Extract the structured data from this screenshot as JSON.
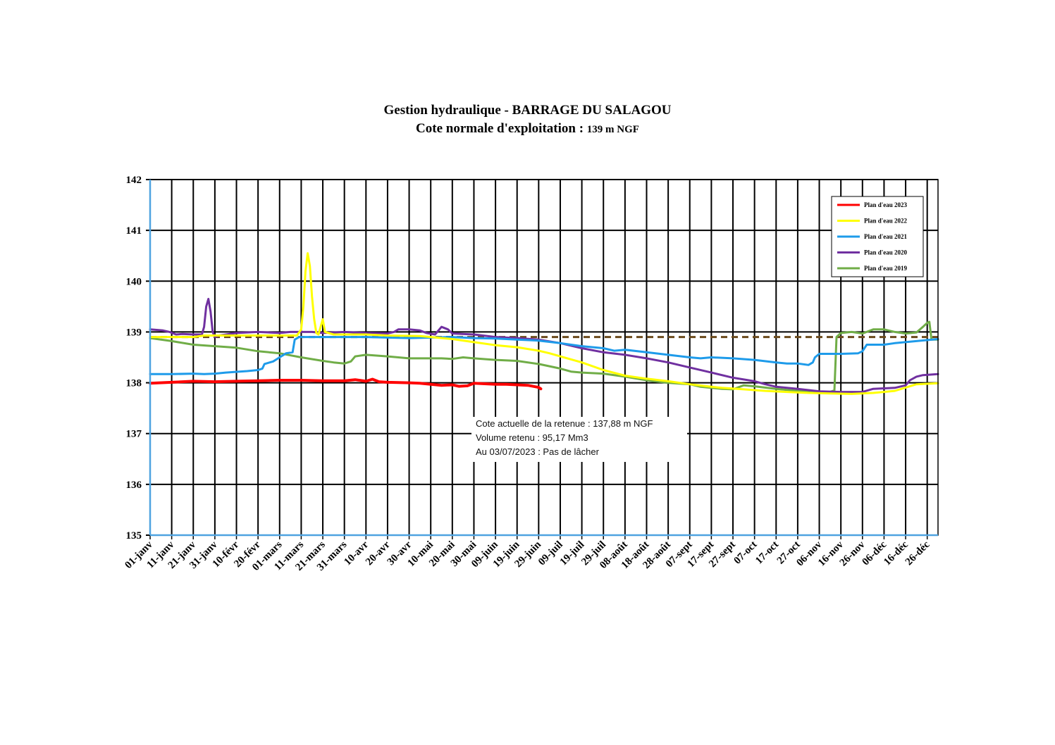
{
  "chart_data": {
    "type": "line",
    "title": "Gestion hydraulique - BARRAGE DU SALAGOU",
    "subtitle_main": "Cote normale d'exploitation : ",
    "subtitle_value": "139 m NGF",
    "ylim": [
      135,
      142
    ],
    "y_ticks": [
      135,
      136,
      137,
      138,
      139,
      140,
      141,
      142
    ],
    "xlim": [
      0,
      365
    ],
    "x_tick_labels": [
      "01-janv",
      "11-janv",
      "21-janv",
      "31-janv",
      "10-févr",
      "20-févr",
      "01-mars",
      "11-mars",
      "21-mars",
      "31-mars",
      "10-avr",
      "20-avr",
      "30-avr",
      "10-mai",
      "20-mai",
      "30-mai",
      "09-juin",
      "19-juin",
      "29-juin",
      "09-juil",
      "19-juil",
      "29-juil",
      "08-août",
      "18-août",
      "28-août",
      "07-sept",
      "17-sept",
      "27-sept",
      "07-oct",
      "17-oct",
      "27-oct",
      "06-nov",
      "16-nov",
      "26-nov",
      "06-déc",
      "16-déc",
      "26-déc"
    ],
    "grid": true,
    "legend_position": "top-right",
    "reference_line": {
      "y": 138.9,
      "color": "#6b4a1c",
      "style": "dashed"
    },
    "series": [
      {
        "name": "Plan d'eau 2023",
        "color": "#ff0000",
        "width": 4,
        "points": [
          [
            0,
            137.99
          ],
          [
            10,
            138.01
          ],
          [
            20,
            138.03
          ],
          [
            30,
            138.02
          ],
          [
            40,
            138.03
          ],
          [
            50,
            138.04
          ],
          [
            60,
            138.05
          ],
          [
            70,
            138.05
          ],
          [
            80,
            138.04
          ],
          [
            90,
            138.04
          ],
          [
            95,
            138.06
          ],
          [
            100,
            138.03
          ],
          [
            103,
            138.07
          ],
          [
            106,
            138.02
          ],
          [
            110,
            138.01
          ],
          [
            120,
            138.0
          ],
          [
            125,
            137.99
          ],
          [
            130,
            137.97
          ],
          [
            135,
            137.95
          ],
          [
            140,
            137.96
          ],
          [
            143,
            137.93
          ],
          [
            147,
            137.94
          ],
          [
            150,
            137.99
          ],
          [
            155,
            137.98
          ],
          [
            160,
            137.97
          ],
          [
            165,
            137.97
          ],
          [
            170,
            137.96
          ],
          [
            175,
            137.95
          ],
          [
            180,
            137.91
          ],
          [
            181,
            137.88
          ]
        ]
      },
      {
        "name": "Plan d'eau 2022",
        "color": "#ffff00",
        "width": 3,
        "points": [
          [
            0,
            138.9
          ],
          [
            10,
            138.9
          ],
          [
            20,
            138.9
          ],
          [
            25,
            138.93
          ],
          [
            30,
            138.93
          ],
          [
            40,
            138.93
          ],
          [
            50,
            138.93
          ],
          [
            60,
            138.93
          ],
          [
            68,
            138.93
          ],
          [
            70,
            139.05
          ],
          [
            71,
            139.5
          ],
          [
            72,
            140.2
          ],
          [
            73,
            140.55
          ],
          [
            74,
            140.3
          ],
          [
            75,
            139.7
          ],
          [
            76,
            139.25
          ],
          [
            77,
            138.98
          ],
          [
            78,
            138.95
          ],
          [
            80,
            139.25
          ],
          [
            81,
            139.0
          ],
          [
            85,
            138.95
          ],
          [
            100,
            138.95
          ],
          [
            110,
            138.93
          ],
          [
            125,
            138.92
          ],
          [
            130,
            138.9
          ],
          [
            140,
            138.86
          ],
          [
            150,
            138.8
          ],
          [
            160,
            138.74
          ],
          [
            170,
            138.7
          ],
          [
            180,
            138.63
          ],
          [
            185,
            138.58
          ],
          [
            190,
            138.52
          ],
          [
            200,
            138.4
          ],
          [
            210,
            138.25
          ],
          [
            220,
            138.14
          ],
          [
            230,
            138.08
          ],
          [
            240,
            138.03
          ],
          [
            250,
            137.97
          ],
          [
            260,
            137.92
          ],
          [
            265,
            137.9
          ],
          [
            275,
            137.87
          ],
          [
            285,
            137.84
          ],
          [
            295,
            137.82
          ],
          [
            305,
            137.8
          ],
          [
            315,
            137.79
          ],
          [
            325,
            137.78
          ],
          [
            335,
            137.8
          ],
          [
            345,
            137.84
          ],
          [
            355,
            137.97
          ],
          [
            365,
            137.99
          ]
        ]
      },
      {
        "name": "Plan d'eau 2021",
        "color": "#1e9bea",
        "width": 3,
        "points": [
          [
            0,
            138.17
          ],
          [
            10,
            138.17
          ],
          [
            20,
            138.18
          ],
          [
            25,
            138.17
          ],
          [
            30,
            138.18
          ],
          [
            35,
            138.2
          ],
          [
            45,
            138.23
          ],
          [
            50,
            138.25
          ],
          [
            52,
            138.28
          ],
          [
            53,
            138.37
          ],
          [
            57,
            138.42
          ],
          [
            60,
            138.5
          ],
          [
            63,
            138.58
          ],
          [
            66,
            138.6
          ],
          [
            67,
            138.85
          ],
          [
            69,
            138.9
          ],
          [
            80,
            138.9
          ],
          [
            100,
            138.9
          ],
          [
            120,
            138.88
          ],
          [
            130,
            138.89
          ],
          [
            140,
            138.9
          ],
          [
            150,
            138.88
          ],
          [
            160,
            138.87
          ],
          [
            170,
            138.85
          ],
          [
            180,
            138.83
          ],
          [
            190,
            138.78
          ],
          [
            200,
            138.72
          ],
          [
            210,
            138.68
          ],
          [
            215,
            138.63
          ],
          [
            220,
            138.65
          ],
          [
            230,
            138.6
          ],
          [
            240,
            138.55
          ],
          [
            250,
            138.5
          ],
          [
            255,
            138.48
          ],
          [
            260,
            138.5
          ],
          [
            270,
            138.48
          ],
          [
            280,
            138.45
          ],
          [
            290,
            138.4
          ],
          [
            295,
            138.38
          ],
          [
            300,
            138.38
          ],
          [
            305,
            138.35
          ],
          [
            307,
            138.4
          ],
          [
            308,
            138.5
          ],
          [
            310,
            138.57
          ],
          [
            320,
            138.57
          ],
          [
            328,
            138.58
          ],
          [
            330,
            138.62
          ],
          [
            332,
            138.75
          ],
          [
            340,
            138.75
          ],
          [
            345,
            138.78
          ],
          [
            355,
            138.82
          ],
          [
            365,
            138.86
          ]
        ]
      },
      {
        "name": "Plan d'eau 2020",
        "color": "#7030a0",
        "width": 3,
        "points": [
          [
            0,
            139.05
          ],
          [
            6,
            139.03
          ],
          [
            9,
            139.0
          ],
          [
            12,
            138.95
          ],
          [
            15,
            138.96
          ],
          [
            20,
            138.95
          ],
          [
            24,
            138.95
          ],
          [
            25,
            139.1
          ],
          [
            26,
            139.5
          ],
          [
            27,
            139.65
          ],
          [
            28,
            139.4
          ],
          [
            29,
            139.0
          ],
          [
            30,
            138.9
          ],
          [
            32,
            138.93
          ],
          [
            40,
            138.98
          ],
          [
            50,
            139.0
          ],
          [
            60,
            138.98
          ],
          [
            65,
            139.0
          ],
          [
            75,
            139.0
          ],
          [
            80,
            138.98
          ],
          [
            90,
            139.0
          ],
          [
            100,
            138.98
          ],
          [
            110,
            138.97
          ],
          [
            113,
            139.0
          ],
          [
            115,
            139.05
          ],
          [
            120,
            139.05
          ],
          [
            125,
            139.03
          ],
          [
            128,
            138.98
          ],
          [
            132,
            138.95
          ],
          [
            135,
            139.1
          ],
          [
            138,
            139.05
          ],
          [
            140,
            138.97
          ],
          [
            150,
            138.95
          ],
          [
            160,
            138.9
          ],
          [
            170,
            138.88
          ],
          [
            180,
            138.85
          ],
          [
            190,
            138.78
          ],
          [
            200,
            138.68
          ],
          [
            210,
            138.6
          ],
          [
            220,
            138.55
          ],
          [
            230,
            138.48
          ],
          [
            240,
            138.4
          ],
          [
            250,
            138.3
          ],
          [
            260,
            138.2
          ],
          [
            270,
            138.1
          ],
          [
            280,
            138.03
          ],
          [
            285,
            137.97
          ],
          [
            290,
            137.92
          ],
          [
            300,
            137.88
          ],
          [
            310,
            137.83
          ],
          [
            320,
            137.82
          ],
          [
            330,
            137.82
          ],
          [
            335,
            137.88
          ],
          [
            345,
            137.9
          ],
          [
            350,
            137.95
          ],
          [
            352,
            138.05
          ],
          [
            355,
            138.12
          ],
          [
            358,
            138.15
          ],
          [
            365,
            138.17
          ]
        ]
      },
      {
        "name": "Plan d'eau 2019",
        "color": "#70ad47",
        "width": 3,
        "points": [
          [
            0,
            138.88
          ],
          [
            10,
            138.82
          ],
          [
            20,
            138.75
          ],
          [
            30,
            138.72
          ],
          [
            40,
            138.69
          ],
          [
            50,
            138.62
          ],
          [
            60,
            138.58
          ],
          [
            70,
            138.5
          ],
          [
            80,
            138.43
          ],
          [
            85,
            138.4
          ],
          [
            90,
            138.38
          ],
          [
            93,
            138.42
          ],
          [
            95,
            138.52
          ],
          [
            100,
            138.55
          ],
          [
            110,
            138.52
          ],
          [
            120,
            138.48
          ],
          [
            130,
            138.48
          ],
          [
            135,
            138.48
          ],
          [
            140,
            138.47
          ],
          [
            145,
            138.5
          ],
          [
            150,
            138.48
          ],
          [
            160,
            138.45
          ],
          [
            170,
            138.43
          ],
          [
            180,
            138.37
          ],
          [
            190,
            138.28
          ],
          [
            195,
            138.22
          ],
          [
            200,
            138.2
          ],
          [
            210,
            138.18
          ],
          [
            220,
            138.12
          ],
          [
            230,
            138.05
          ],
          [
            240,
            138.0
          ],
          [
            250,
            137.97
          ],
          [
            255,
            137.92
          ],
          [
            265,
            137.88
          ],
          [
            270,
            137.87
          ],
          [
            275,
            137.95
          ],
          [
            280,
            137.93
          ],
          [
            290,
            137.88
          ],
          [
            300,
            137.84
          ],
          [
            305,
            137.82
          ],
          [
            310,
            137.81
          ],
          [
            315,
            137.82
          ],
          [
            317,
            137.85
          ],
          [
            318,
            138.9
          ],
          [
            320,
            138.98
          ],
          [
            325,
            139.0
          ],
          [
            330,
            138.97
          ],
          [
            335,
            139.05
          ],
          [
            340,
            139.05
          ],
          [
            345,
            139.0
          ],
          [
            350,
            138.97
          ],
          [
            355,
            138.99
          ],
          [
            358,
            139.1
          ],
          [
            360,
            139.18
          ],
          [
            361,
            139.2
          ],
          [
            362,
            138.85
          ],
          [
            365,
            138.85
          ]
        ]
      }
    ],
    "annotation": [
      "Cote actuelle de la retenue : 137,88 m NGF",
      "Volume retenu : 95,17 Mm3",
      "Au 03/07/2023 : Pas de lâcher"
    ]
  }
}
